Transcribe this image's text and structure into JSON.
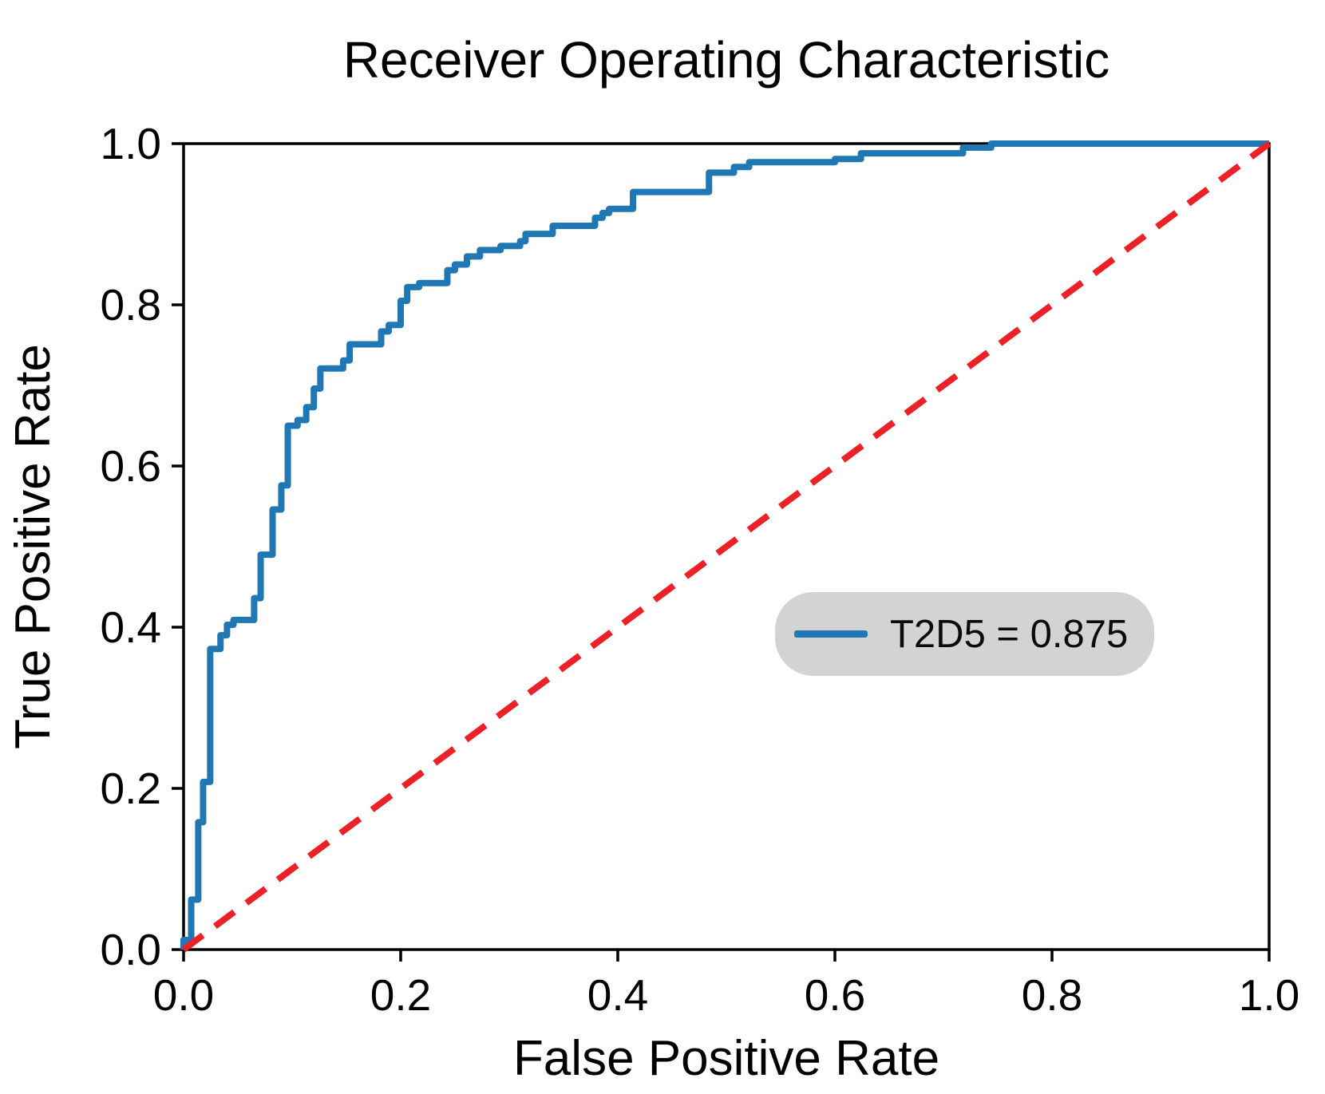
{
  "chart_data": {
    "type": "line",
    "title": "Receiver Operating Characteristic",
    "xlabel": "False Positive Rate",
    "ylabel": "True Positive Rate",
    "xlim": [
      0.0,
      1.0
    ],
    "ylim": [
      0.0,
      1.0
    ],
    "x_ticks": [
      "0.0",
      "0.2",
      "0.4",
      "0.6",
      "0.8",
      "1.0"
    ],
    "y_ticks": [
      "0.0",
      "0.2",
      "0.4",
      "0.6",
      "0.8",
      "1.0"
    ],
    "grid": false,
    "legend": {
      "label": "T2D5 = 0.875",
      "series_name": "T2D5",
      "auc": 0.875,
      "position": "center-right"
    },
    "series": [
      {
        "name": "roc-curve",
        "draw": "step-polyline",
        "color": "#1f77b4",
        "points": [
          [
            0.0,
            0.0
          ],
          [
            0.0,
            0.012
          ],
          [
            0.007,
            0.012
          ],
          [
            0.007,
            0.062
          ],
          [
            0.0135,
            0.062
          ],
          [
            0.0135,
            0.158
          ],
          [
            0.018,
            0.158
          ],
          [
            0.018,
            0.208
          ],
          [
            0.0245,
            0.208
          ],
          [
            0.0245,
            0.373
          ],
          [
            0.034,
            0.373
          ],
          [
            0.034,
            0.39
          ],
          [
            0.04,
            0.39
          ],
          [
            0.04,
            0.403
          ],
          [
            0.046,
            0.403
          ],
          [
            0.046,
            0.409
          ],
          [
            0.065,
            0.409
          ],
          [
            0.065,
            0.436
          ],
          [
            0.071,
            0.436
          ],
          [
            0.071,
            0.49
          ],
          [
            0.082,
            0.49
          ],
          [
            0.082,
            0.546
          ],
          [
            0.09,
            0.546
          ],
          [
            0.09,
            0.576
          ],
          [
            0.096,
            0.576
          ],
          [
            0.096,
            0.65
          ],
          [
            0.105,
            0.65
          ],
          [
            0.105,
            0.657
          ],
          [
            0.113,
            0.657
          ],
          [
            0.113,
            0.673
          ],
          [
            0.12,
            0.673
          ],
          [
            0.12,
            0.696
          ],
          [
            0.126,
            0.696
          ],
          [
            0.126,
            0.721
          ],
          [
            0.147,
            0.721
          ],
          [
            0.147,
            0.731
          ],
          [
            0.153,
            0.731
          ],
          [
            0.153,
            0.751
          ],
          [
            0.182,
            0.751
          ],
          [
            0.182,
            0.767
          ],
          [
            0.189,
            0.767
          ],
          [
            0.189,
            0.775
          ],
          [
            0.2,
            0.775
          ],
          [
            0.2,
            0.805
          ],
          [
            0.206,
            0.805
          ],
          [
            0.206,
            0.822
          ],
          [
            0.217,
            0.822
          ],
          [
            0.217,
            0.827
          ],
          [
            0.243,
            0.827
          ],
          [
            0.243,
            0.843
          ],
          [
            0.25,
            0.843
          ],
          [
            0.25,
            0.85
          ],
          [
            0.261,
            0.85
          ],
          [
            0.261,
            0.86
          ],
          [
            0.273,
            0.86
          ],
          [
            0.273,
            0.868
          ],
          [
            0.292,
            0.868
          ],
          [
            0.292,
            0.873
          ],
          [
            0.31,
            0.873
          ],
          [
            0.31,
            0.879
          ],
          [
            0.315,
            0.879
          ],
          [
            0.315,
            0.888
          ],
          [
            0.34,
            0.888
          ],
          [
            0.34,
            0.898
          ],
          [
            0.379,
            0.898
          ],
          [
            0.379,
            0.908
          ],
          [
            0.386,
            0.908
          ],
          [
            0.386,
            0.914
          ],
          [
            0.392,
            0.914
          ],
          [
            0.392,
            0.919
          ],
          [
            0.414,
            0.919
          ],
          [
            0.414,
            0.94
          ],
          [
            0.484,
            0.94
          ],
          [
            0.484,
            0.964
          ],
          [
            0.507,
            0.964
          ],
          [
            0.507,
            0.971
          ],
          [
            0.521,
            0.971
          ],
          [
            0.521,
            0.977
          ],
          [
            0.6,
            0.977
          ],
          [
            0.6,
            0.981
          ],
          [
            0.624,
            0.981
          ],
          [
            0.624,
            0.988
          ],
          [
            0.718,
            0.988
          ],
          [
            0.718,
            0.995
          ],
          [
            0.744,
            0.995
          ],
          [
            0.744,
            1.0
          ],
          [
            1.0,
            1.0
          ]
        ]
      },
      {
        "name": "chance-diagonal",
        "draw": "dashed-line",
        "color": "#eb2127",
        "points": [
          [
            0.0,
            0.0
          ],
          [
            1.0,
            1.0
          ]
        ]
      }
    ]
  },
  "colors": {
    "curve": "#1f77b4",
    "diagonal": "#eb2127",
    "legend_bg": "#d3d3d3",
    "axes": "#000000",
    "background": "#ffffff"
  }
}
